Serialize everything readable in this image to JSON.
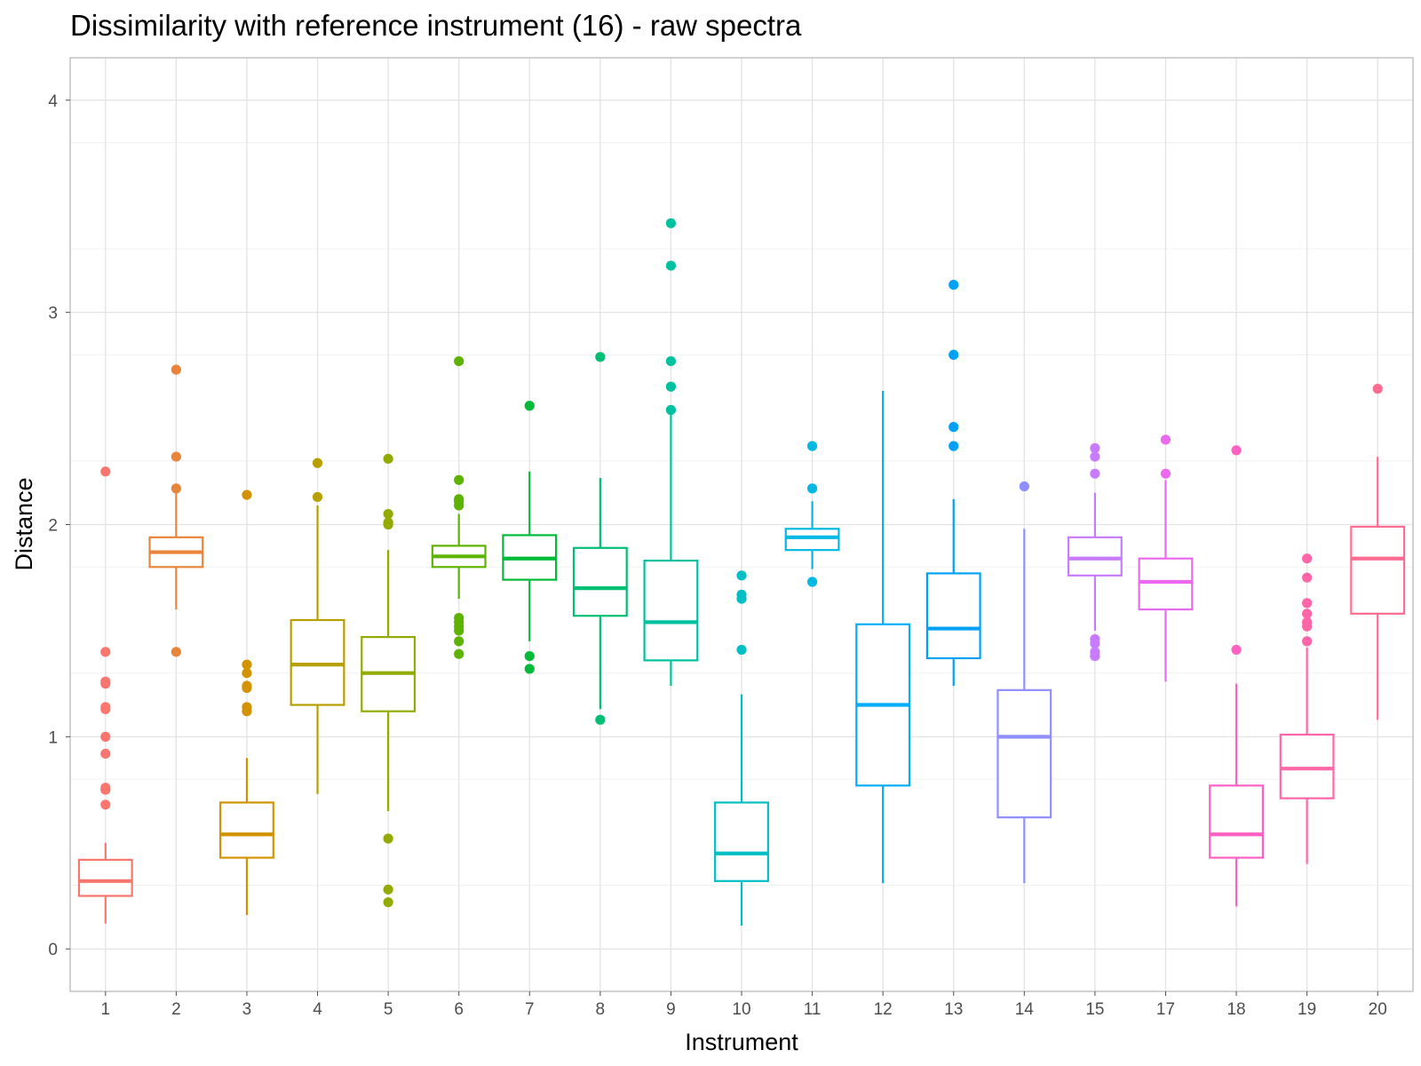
{
  "chart_data": {
    "type": "boxplot",
    "title": "Dissimilarity with reference instrument (16) - raw spectra",
    "xlabel": "Instrument",
    "ylabel": "Distance",
    "ylim": [
      -0.2,
      4.2
    ],
    "yticks": [
      0,
      1,
      2,
      3,
      4
    ],
    "grid": true,
    "legend": "none",
    "categories": [
      "1",
      "2",
      "3",
      "4",
      "5",
      "6",
      "7",
      "8",
      "9",
      "10",
      "11",
      "12",
      "13",
      "14",
      "15",
      "17",
      "18",
      "19",
      "20"
    ],
    "colors": [
      "#F8766D",
      "#E8853A",
      "#D39200",
      "#B79F00",
      "#93AA00",
      "#5EB300",
      "#00BA38",
      "#00BF74",
      "#00C19F",
      "#00BFC4",
      "#00B9E3",
      "#00ADFA",
      "#00A0F5",
      "#8F8FFF",
      "#C77CFF",
      "#EC69EF",
      "#FF61C3",
      "#FF66A8",
      "#FF6C91"
    ],
    "boxes": [
      {
        "category": "1",
        "lower": 0.12,
        "q1": 0.25,
        "median": 0.32,
        "q3": 0.42,
        "upper": 0.5,
        "outliers": [
          0.68,
          0.75,
          0.76,
          0.92,
          1.0,
          1.13,
          1.14,
          1.25,
          1.26,
          1.4,
          2.25
        ]
      },
      {
        "category": "2",
        "lower": 1.6,
        "q1": 1.8,
        "median": 1.87,
        "q3": 1.94,
        "upper": 2.16,
        "outliers": [
          1.4,
          2.17,
          2.32,
          2.73
        ]
      },
      {
        "category": "3",
        "lower": 0.16,
        "q1": 0.43,
        "median": 0.54,
        "q3": 0.69,
        "upper": 0.9,
        "outliers": [
          1.12,
          1.14,
          1.23,
          1.24,
          1.3,
          1.34,
          2.14
        ]
      },
      {
        "category": "4",
        "lower": 0.73,
        "q1": 1.15,
        "median": 1.34,
        "q3": 1.55,
        "upper": 2.09,
        "outliers": [
          2.13,
          2.29
        ]
      },
      {
        "category": "5",
        "lower": 0.65,
        "q1": 1.12,
        "median": 1.3,
        "q3": 1.47,
        "upper": 1.88,
        "outliers": [
          0.22,
          0.28,
          0.52,
          2.0,
          2.01,
          2.05,
          2.31
        ]
      },
      {
        "category": "6",
        "lower": 1.65,
        "q1": 1.8,
        "median": 1.85,
        "q3": 1.9,
        "upper": 2.05,
        "outliers": [
          1.39,
          1.45,
          1.5,
          1.52,
          1.54,
          1.56,
          2.09,
          2.11,
          2.12,
          2.21,
          2.77
        ]
      },
      {
        "category": "7",
        "lower": 1.45,
        "q1": 1.74,
        "median": 1.84,
        "q3": 1.95,
        "upper": 2.25,
        "outliers": [
          1.32,
          1.38,
          2.56
        ]
      },
      {
        "category": "8",
        "lower": 1.13,
        "q1": 1.57,
        "median": 1.7,
        "q3": 1.89,
        "upper": 2.22,
        "outliers": [
          1.08,
          2.79
        ]
      },
      {
        "category": "9",
        "lower": 1.24,
        "q1": 1.36,
        "median": 1.54,
        "q3": 1.83,
        "upper": 2.52,
        "outliers": [
          2.54,
          2.65,
          2.77,
          3.22,
          3.42
        ]
      },
      {
        "category": "10",
        "lower": 0.11,
        "q1": 0.32,
        "median": 0.45,
        "q3": 0.69,
        "upper": 1.2,
        "outliers": [
          1.41,
          1.65,
          1.67,
          1.76
        ]
      },
      {
        "category": "11",
        "lower": 1.79,
        "q1": 1.88,
        "median": 1.94,
        "q3": 1.98,
        "upper": 2.11,
        "outliers": [
          1.73,
          2.17,
          2.37
        ]
      },
      {
        "category": "12",
        "lower": 0.31,
        "q1": 0.77,
        "median": 1.15,
        "q3": 1.53,
        "upper": 2.63,
        "outliers": []
      },
      {
        "category": "13",
        "lower": 1.24,
        "q1": 1.37,
        "median": 1.51,
        "q3": 1.77,
        "upper": 2.12,
        "outliers": [
          2.37,
          2.46,
          2.8,
          3.13
        ]
      },
      {
        "category": "14",
        "lower": 0.31,
        "q1": 0.62,
        "median": 1.0,
        "q3": 1.22,
        "upper": 1.98,
        "outliers": [
          2.18
        ]
      },
      {
        "category": "15",
        "lower": 1.5,
        "q1": 1.76,
        "median": 1.84,
        "q3": 1.94,
        "upper": 2.15,
        "outliers": [
          1.38,
          1.4,
          1.44,
          1.46,
          2.24,
          2.32,
          2.36
        ]
      },
      {
        "category": "17",
        "lower": 1.26,
        "q1": 1.6,
        "median": 1.73,
        "q3": 1.84,
        "upper": 2.21,
        "outliers": [
          2.24,
          2.4
        ]
      },
      {
        "category": "18",
        "lower": 0.2,
        "q1": 0.43,
        "median": 0.54,
        "q3": 0.77,
        "upper": 1.25,
        "outliers": [
          1.41,
          2.35
        ]
      },
      {
        "category": "19",
        "lower": 0.4,
        "q1": 0.71,
        "median": 0.85,
        "q3": 1.01,
        "upper": 1.42,
        "outliers": [
          1.45,
          1.52,
          1.54,
          1.58,
          1.63,
          1.75,
          1.84
        ]
      },
      {
        "category": "20",
        "lower": 1.08,
        "q1": 1.58,
        "median": 1.84,
        "q3": 1.99,
        "upper": 2.32,
        "outliers": [
          2.64
        ]
      }
    ]
  }
}
